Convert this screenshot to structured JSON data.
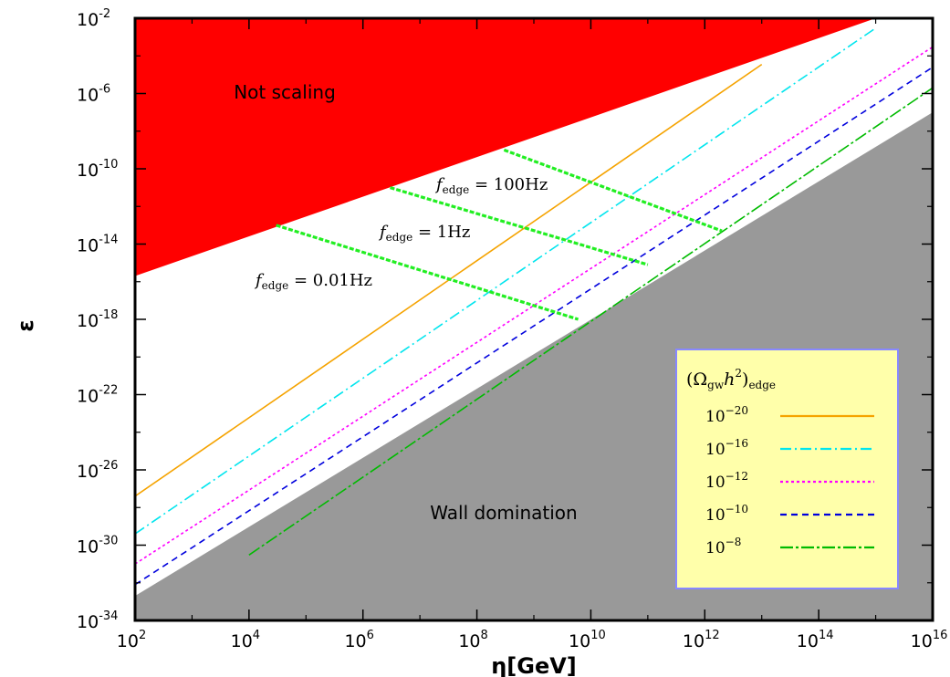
{
  "chart_data": {
    "type": "line",
    "xlabel": "η[GeV]",
    "ylabel": "ε",
    "xscale": "log",
    "yscale": "log",
    "xlim": [
      100.0,
      1e+16
    ],
    "ylim": [
      1e-34,
      0.01
    ],
    "grid": false,
    "x_ticks": [
      {
        "base": "10",
        "exp": "2"
      },
      {
        "base": "10",
        "exp": "4"
      },
      {
        "base": "10",
        "exp": "6"
      },
      {
        "base": "10",
        "exp": "8"
      },
      {
        "base": "10",
        "exp": "10"
      },
      {
        "base": "10",
        "exp": "12"
      },
      {
        "base": "10",
        "exp": "14"
      },
      {
        "base": "10",
        "exp": "16"
      }
    ],
    "y_ticks": [
      {
        "base": "10",
        "exp": "-2"
      },
      {
        "base": "10",
        "exp": "-6"
      },
      {
        "base": "10",
        "exp": "-10"
      },
      {
        "base": "10",
        "exp": "-14"
      },
      {
        "base": "10",
        "exp": "-18"
      },
      {
        "base": "10",
        "exp": "-22"
      },
      {
        "base": "10",
        "exp": "-26"
      },
      {
        "base": "10",
        "exp": "-30"
      },
      {
        "base": "10",
        "exp": "-34"
      }
    ],
    "regions": [
      {
        "label": "Not scaling",
        "color": "#ff0000",
        "boundary": [
          [
            100.0,
            2e-16
          ],
          [
            1000000000000000.0,
            0.01
          ]
        ]
      },
      {
        "label": "Wall domination",
        "color": "#999999",
        "boundary": [
          [
            100.0,
            2e-33
          ],
          [
            1e+16,
            1e-07
          ]
        ]
      }
    ],
    "series": [
      {
        "name": "(Ω_gw h²)_edge = 10⁻²⁰",
        "legend": {
          "base": "10",
          "exp": "−20"
        },
        "color": "#f5a300",
        "dash": "",
        "x": [
          100.0,
          10000000000000.0
        ],
        "y": [
          4e-28,
          3.5e-05
        ]
      },
      {
        "name": "(Ω_gw h²)_edge = 10⁻¹⁶",
        "legend": {
          "base": "10",
          "exp": "−16"
        },
        "color": "#00e5ee",
        "dash": "12 4 2 4",
        "x": [
          100.0,
          1000000000000000.0
        ],
        "y": [
          4e-30,
          0.003
        ]
      },
      {
        "name": "(Ω_gw h²)_edge = 10⁻¹²",
        "legend": {
          "base": "10",
          "exp": "−12"
        },
        "color": "#ff00ff",
        "dash": "3 3",
        "x": [
          100.0,
          1e+16
        ],
        "y": [
          1e-31,
          0.0003
        ]
      },
      {
        "name": "(Ω_gw h²)_edge = 10⁻¹⁰",
        "legend": {
          "base": "10",
          "exp": "−10"
        },
        "color": "#0000dd",
        "dash": "7 5",
        "x": [
          100.0,
          1e+16
        ],
        "y": [
          8e-33,
          2.5e-05
        ]
      },
      {
        "name": "(Ω_gw h²)_edge = 10⁻⁸",
        "legend": {
          "base": "10",
          "exp": "−8"
        },
        "color": "#00bb00",
        "dash": "14 3 3 3",
        "x": [
          10000.0,
          1e+16
        ],
        "y": [
          3e-31,
          2e-06
        ]
      }
    ],
    "frequency_lines": [
      {
        "label": "f_edge = 100Hz",
        "sub": "edge",
        "value": " = 100Hz",
        "x": [
          300000000.0,
          2000000000000.0
        ],
        "y": [
          1e-09,
          5e-14
        ]
      },
      {
        "label": "f_edge = 1Hz",
        "sub": "edge",
        "value": " = 1Hz",
        "x": [
          3000000.0,
          100000000000.0
        ],
        "y": [
          1e-11,
          8e-16
        ]
      },
      {
        "label": "f_edge = 0.01Hz",
        "sub": "edge",
        "value": " = 0.01Hz",
        "x": [
          30000.0,
          6000000000.0
        ],
        "y": [
          1e-13,
          1e-18
        ]
      }
    ],
    "frequency_line_color": "#22ee22",
    "legend": {
      "title_base": "(Ω",
      "title_sub": "gw",
      "title_mid": "h",
      "title_sup": "2",
      "title_close": ")",
      "title_sub2": "edge",
      "placement": "bottom-right",
      "background": "#ffffaa",
      "border": "#8888ff"
    }
  }
}
